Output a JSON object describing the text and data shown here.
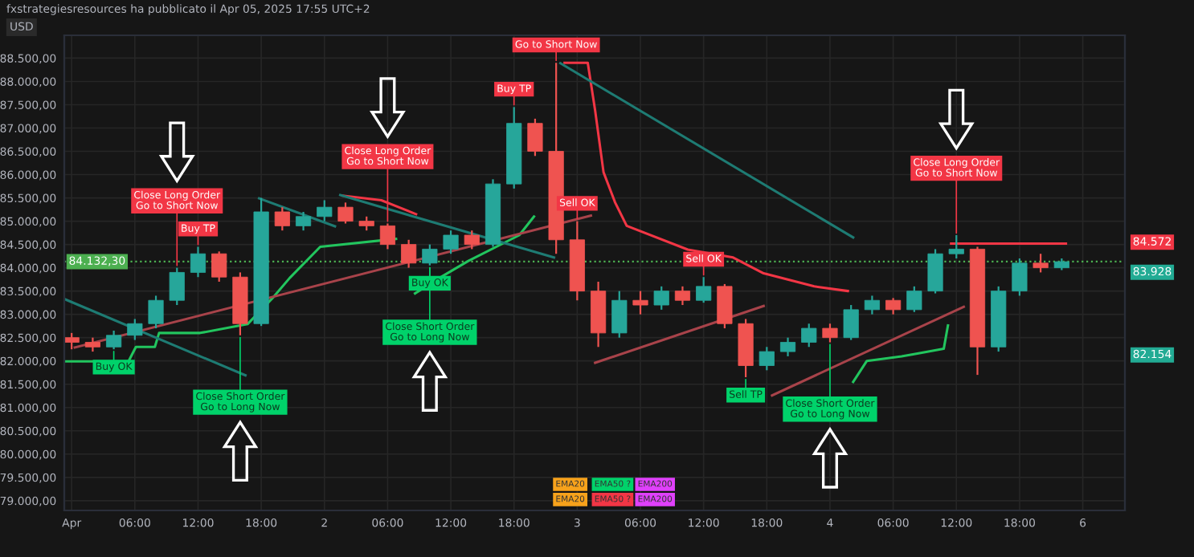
{
  "chart_data": {
    "type": "candlestick",
    "title": "fxstrategiesresources ha pubblicato il Apr 05, 2025 17:55 UTC+2",
    "ylabel": "USD",
    "x": [
      "2025-04-01T00:00",
      "2025-04-01T02:00",
      "2025-04-01T04:00",
      "2025-04-01T06:00",
      "2025-04-01T08:00",
      "2025-04-01T10:00",
      "2025-04-01T12:00",
      "2025-04-01T14:00",
      "2025-04-01T16:00",
      "2025-04-01T18:00",
      "2025-04-01T20:00",
      "2025-04-01T22:00",
      "2025-04-02T00:00",
      "2025-04-02T02:00",
      "2025-04-02T04:00",
      "2025-04-02T06:00",
      "2025-04-02T08:00",
      "2025-04-02T10:00",
      "2025-04-02T12:00",
      "2025-04-02T14:00",
      "2025-04-02T16:00",
      "2025-04-02T18:00",
      "2025-04-02T20:00",
      "2025-04-02T22:00",
      "2025-04-03T00:00",
      "2025-04-03T02:00",
      "2025-04-03T04:00",
      "2025-04-03T06:00",
      "2025-04-03T08:00",
      "2025-04-03T10:00",
      "2025-04-03T12:00",
      "2025-04-03T14:00",
      "2025-04-03T16:00",
      "2025-04-03T18:00",
      "2025-04-03T20:00",
      "2025-04-03T22:00",
      "2025-04-04T00:00",
      "2025-04-04T02:00",
      "2025-04-04T04:00",
      "2025-04-04T06:00",
      "2025-04-04T08:00",
      "2025-04-04T10:00",
      "2025-04-04T12:00",
      "2025-04-04T14:00",
      "2025-04-04T16:00",
      "2025-04-04T18:00",
      "2025-04-04T20:00",
      "2025-04-04T22:00"
    ],
    "ohlc": [
      [
        82500,
        82600,
        82250,
        82400
      ],
      [
        82400,
        82500,
        82200,
        82300
      ],
      [
        82300,
        82650,
        82250,
        82550
      ],
      [
        82550,
        82900,
        82450,
        82800
      ],
      [
        82800,
        83400,
        82700,
        83300
      ],
      [
        83300,
        84000,
        83200,
        83900
      ],
      [
        83900,
        84450,
        83800,
        84300
      ],
      [
        84300,
        84350,
        83700,
        83800
      ],
      [
        83800,
        83900,
        82550,
        82800
      ],
      [
        82800,
        85500,
        82750,
        85200
      ],
      [
        85200,
        85300,
        84800,
        84900
      ],
      [
        84900,
        85200,
        84800,
        85100
      ],
      [
        85100,
        85450,
        85000,
        85300
      ],
      [
        85300,
        85400,
        84950,
        85000
      ],
      [
        85000,
        85100,
        84800,
        84900
      ],
      [
        84900,
        84950,
        84400,
        84500
      ],
      [
        84500,
        84600,
        84000,
        84100
      ],
      [
        84100,
        84500,
        84050,
        84400
      ],
      [
        84400,
        84800,
        84300,
        84700
      ],
      [
        84700,
        84800,
        84400,
        84500
      ],
      [
        84500,
        85900,
        84450,
        85800
      ],
      [
        85800,
        87450,
        85700,
        87100
      ],
      [
        87100,
        87200,
        86400,
        86500
      ],
      [
        86500,
        88400,
        84300,
        84600
      ],
      [
        84600,
        85000,
        83300,
        83500
      ],
      [
        83500,
        83700,
        82300,
        82600
      ],
      [
        82600,
        83500,
        82500,
        83300
      ],
      [
        83300,
        83500,
        83000,
        83200
      ],
      [
        83200,
        83600,
        83100,
        83500
      ],
      [
        83500,
        83600,
        83200,
        83300
      ],
      [
        83300,
        83800,
        83250,
        83600
      ],
      [
        83600,
        83650,
        82700,
        82800
      ],
      [
        82800,
        82900,
        81650,
        81900
      ],
      [
        81900,
        82300,
        81800,
        82200
      ],
      [
        82200,
        82500,
        82100,
        82400
      ],
      [
        82400,
        82800,
        82300,
        82700
      ],
      [
        82700,
        82800,
        82400,
        82500
      ],
      [
        82500,
        83200,
        82450,
        83100
      ],
      [
        83100,
        83400,
        83000,
        83300
      ],
      [
        83300,
        83350,
        83000,
        83100
      ],
      [
        83100,
        83600,
        83050,
        83500
      ],
      [
        83500,
        84400,
        83450,
        84300
      ],
      [
        84300,
        84700,
        84200,
        84400
      ],
      [
        84400,
        84450,
        81700,
        82300
      ],
      [
        82300,
        83600,
        82200,
        83500
      ],
      [
        83500,
        84200,
        83400,
        84100
      ],
      [
        84100,
        84300,
        83900,
        84000
      ],
      [
        84000,
        84200,
        83950,
        84130
      ]
    ],
    "colors": [
      "#ef5350",
      "#ef5350",
      "#26a69a",
      "#26a69a",
      "#26a69a",
      "#26a69a",
      "#26a69a",
      "#ef5350",
      "#ef5350",
      "#26a69a",
      "#ef5350",
      "#26a69a",
      "#26a69a",
      "#ef5350",
      "#ef5350",
      "#ef5350",
      "#ef5350",
      "#26a69a",
      "#26a69a",
      "#ef5350",
      "#26a69a",
      "#26a69a",
      "#ef5350",
      "#ef5350",
      "#ef5350",
      "#ef5350",
      "#26a69a",
      "#ef5350",
      "#26a69a",
      "#ef5350",
      "#26a69a",
      "#ef5350",
      "#ef5350",
      "#26a69a",
      "#26a69a",
      "#26a69a",
      "#ef5350",
      "#26a69a",
      "#26a69a",
      "#ef5350",
      "#26a69a",
      "#26a69a",
      "#26a69a",
      "#ef5350",
      "#26a69a",
      "#26a69a",
      "#ef5350",
      "#26a69a"
    ],
    "series": [
      {
        "type": "line",
        "color": "#22c55e",
        "x": [
          "2025-03-31T23:18",
          "2025-04-01T05:24",
          "2025-04-01T06:06",
          "2025-04-01T07:54",
          "2025-04-01T08:18",
          "2025-04-01T12:12",
          "2025-04-01T16:42",
          "2025-04-01T19:12",
          "2025-04-01T20:42",
          "2025-04-01T23:36",
          "2025-04-02T06:48",
          "2025-04-02T07:36",
          "2025-04-02T08:36",
          "2025-04-02T11:12",
          "2025-04-02T13:42",
          "2025-04-02T18:30",
          "2025-04-02T19:54",
          "2025-04-02T23:00",
          "2025-04-04T02:12",
          "2025-04-04T03:30",
          "2025-04-04T06:48",
          "2025-04-04T08:18",
          "2025-04-04T10:48",
          "2025-04-04T11:12"
        ],
        "values": [
          81990,
          81990,
          82300,
          82300,
          82600,
          82600,
          82790,
          83380,
          83780,
          84450,
          84620,
          null,
          83450,
          83820,
          84150,
          84700,
          85100,
          null,
          81550,
          82000,
          82100,
          82160,
          82260,
          82760
        ]
      },
      {
        "type": "line",
        "color": "#f23645",
        "x": [
          "2025-04-02T01:42",
          "2025-04-02T05:24",
          "2025-04-02T08:42",
          "2025-04-02T09:30",
          "2025-04-02T22:48",
          "2025-04-03T01:00",
          "2025-04-03T01:42",
          "2025-04-03T02:30",
          "2025-04-03T03:36",
          "2025-04-03T04:42",
          "2025-04-03T10:30",
          "2025-04-03T14:48",
          "2025-04-03T17:42",
          "2025-04-03T22:30",
          "2025-04-04T01:42",
          "2025-04-04T02:00",
          "2025-04-04T11:30",
          "2025-04-04T22:24"
        ],
        "values": [
          85550,
          85450,
          85150,
          null,
          88400,
          88400,
          87380,
          86050,
          85400,
          84900,
          84390,
          84220,
          83880,
          83600,
          83500,
          null,
          84520,
          84520
        ]
      },
      {
        "type": "line",
        "color": "#1e7b73",
        "x": [
          "2025-03-31T23:18",
          "2025-04-01T16:30"
        ],
        "values": [
          83330,
          81690
        ]
      },
      {
        "type": "line",
        "color": "#a8434a",
        "x": [
          "2025-04-01T00:18",
          "2025-04-03T01:18"
        ],
        "values": [
          82290,
          85120
        ]
      },
      {
        "type": "line",
        "color": "#1e7b73",
        "x": [
          "2025-04-02T22:24",
          "2025-04-04T02:12"
        ],
        "values": [
          88390,
          84650
        ]
      },
      {
        "type": "line",
        "color": "#a8434a",
        "x": [
          "2025-04-03T01:42",
          "2025-04-03T17:42"
        ],
        "values": [
          81960,
          83180
        ]
      },
      {
        "type": "line",
        "color": "#a8434a",
        "x": [
          "2025-04-03T18:30",
          "2025-04-04T12:42"
        ],
        "values": [
          81260,
          83160
        ]
      },
      {
        "type": "line",
        "color": "#1e7b73",
        "x": [
          "2025-04-01T17:48",
          "2025-04-02T01:00"
        ],
        "values": [
          85490,
          84890
        ]
      },
      {
        "type": "line",
        "color": "#1e7b73",
        "x": [
          "2025-04-02T01:30",
          "2025-04-02T21:48"
        ],
        "values": [
          85560,
          84220
        ]
      }
    ],
    "ref_lines": [
      {
        "axis": "y",
        "value": 84132.3,
        "label": "84.132,30",
        "color": "#4caf50",
        "line_style": "dotted"
      }
    ],
    "annotations": [
      {
        "text": "Close Long Order\nGo to Short Now",
        "x": "2025-04-01T10:00",
        "y": 84000
      },
      {
        "text": "Close Long Order\nGo to Short Now",
        "x": "2025-04-02T06:00",
        "y": 84950
      },
      {
        "text": "Close Long Order\nGo to Short Now",
        "x": "2025-04-04T12:00",
        "y": 84700
      },
      {
        "text": "Close Short Order\nGo to Long Now",
        "x": "2025-04-01T16:00",
        "y": 82550
      },
      {
        "text": "Close Short Order\nGo to Long Now",
        "x": "2025-04-02T10:00",
        "y": 84050
      },
      {
        "text": "Close Short Order\nGo to Long Now",
        "x": "2025-04-04T00:00",
        "y": 82400
      },
      {
        "text": "Go to Short Now",
        "x": "2025-04-02T22:00",
        "y": 88400
      },
      {
        "text": "Buy OK",
        "x": "2025-04-01T04:00",
        "y": 82250
      },
      {
        "text": "Buy OK",
        "x": "2025-04-02T10:00",
        "y": 84050
      },
      {
        "text": "Sell OK",
        "x": "2025-04-03T00:00",
        "y": 85000
      },
      {
        "text": "Sell OK",
        "x": "2025-04-03T12:00",
        "y": 83800
      },
      {
        "text": "Buy TP",
        "x": "2025-04-01T12:00",
        "y": 84450
      },
      {
        "text": "Buy TP",
        "x": "2025-04-02T18:00",
        "y": 87450
      },
      {
        "text": "Sell TP",
        "x": "2025-04-03T16:00",
        "y": 81650
      },
      "EMA20",
      "EMA50 ?",
      "EMA200",
      "EMA20",
      "EMA50 ?",
      "EMA200"
    ],
    "xlim": [
      "2025-03-31T23:18",
      "2025-04-05T04:00"
    ],
    "xticks": [
      {
        "value": "2025-04-01T00:00",
        "label": "Apr"
      },
      {
        "value": "2025-04-01T06:00",
        "label": "06:00"
      },
      {
        "value": "2025-04-01T12:00",
        "label": "12:00"
      },
      {
        "value": "2025-04-01T18:00",
        "label": "18:00"
      },
      {
        "value": "2025-04-02T00:00",
        "label": "2"
      },
      {
        "value": "2025-04-02T06:00",
        "label": "06:00"
      },
      {
        "value": "2025-04-02T12:00",
        "label": "12:00"
      },
      {
        "value": "2025-04-02T18:00",
        "label": "18:00"
      },
      {
        "value": "2025-04-03T00:00",
        "label": "3"
      },
      {
        "value": "2025-04-03T06:00",
        "label": "06:00"
      },
      {
        "value": "2025-04-03T12:00",
        "label": "12:00"
      },
      {
        "value": "2025-04-03T18:00",
        "label": "18:00"
      },
      {
        "value": "2025-04-04T00:00",
        "label": "4"
      },
      {
        "value": "2025-04-04T06:00",
        "label": "06:00"
      },
      {
        "value": "2025-04-04T12:00",
        "label": "12:00"
      },
      {
        "value": "2025-04-04T18:00",
        "label": "18:00"
      },
      {
        "value": "2025-04-05T00:00",
        "label": "6"
      }
    ],
    "ylim": [
      78790,
      88990
    ],
    "yticks": [
      {
        "value": 79000,
        "label": "79.000,00"
      },
      {
        "value": 79500,
        "label": "79.500,00"
      },
      {
        "value": 80000,
        "label": "80.000,00"
      },
      {
        "value": 80500,
        "label": "80.500,00"
      },
      {
        "value": 81000,
        "label": "81.000,00"
      },
      {
        "value": 81500,
        "label": "81.500,00"
      },
      {
        "value": 82000,
        "label": "82.000,00"
      },
      {
        "value": 82500,
        "label": "82.500,00"
      },
      {
        "value": 83000,
        "label": "83.000,00"
      },
      {
        "value": 83500,
        "label": "83.500,00"
      },
      {
        "value": 84000,
        "label": "84.000,00"
      },
      {
        "value": 84500,
        "label": "84.500,00"
      },
      {
        "value": 85000,
        "label": "85.000,00"
      },
      {
        "value": 85500,
        "label": "85.500,00"
      },
      {
        "value": 86000,
        "label": "86.000,00"
      },
      {
        "value": 86500,
        "label": "86.500,00"
      },
      {
        "value": 87000,
        "label": "87.000,00"
      },
      {
        "value": 87500,
        "label": "87.500,00"
      },
      {
        "value": 88000,
        "label": "88.000,00"
      },
      {
        "value": 88500,
        "label": "88.500,00"
      }
    ],
    "y2lim": [
      78790,
      88990
    ],
    "y2ticks": [
      {
        "value": 84572,
        "label": "84.572"
      },
      {
        "value": 83928,
        "label": "83.928"
      },
      {
        "value": 82154,
        "label": "82.154"
      }
    ],
    "grid": true
  }
}
